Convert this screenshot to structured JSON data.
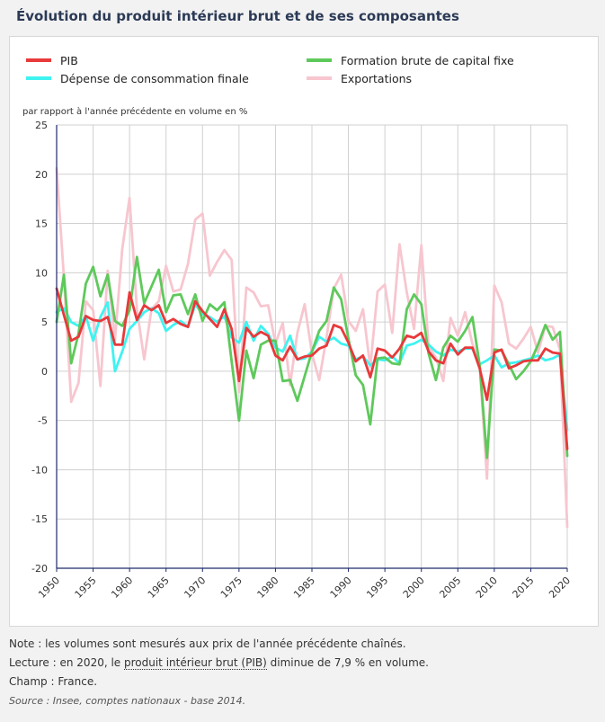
{
  "title": "Évolution du produit intérieur brut et de ses composantes",
  "chart_data": {
    "type": "line",
    "ylabel": "par rapport à l'année précédente en volume en %",
    "ylim": [
      -20,
      25
    ],
    "yticks": [
      -20,
      -15,
      -10,
      -5,
      0,
      5,
      10,
      15,
      20,
      25
    ],
    "xlim": [
      1950,
      2020
    ],
    "xticks": [
      1950,
      1955,
      1960,
      1965,
      1970,
      1975,
      1980,
      1985,
      1990,
      1995,
      2000,
      2005,
      2010,
      2015,
      2020
    ],
    "x_start": 1950,
    "series": [
      {
        "name": "Exportations",
        "color": "#f7c6cf",
        "values": [
          20.6,
          9.5,
          -3.1,
          -1.2,
          7.1,
          6.2,
          -1.5,
          10.2,
          3.2,
          12.4,
          17.6,
          6.3,
          1.2,
          6.3,
          7.1,
          10.7,
          8.1,
          8.3,
          10.9,
          15.4,
          16.0,
          9.7,
          11.1,
          12.3,
          11.3,
          -2.1,
          8.5,
          8.0,
          6.6,
          6.7,
          2.8,
          4.9,
          -1.4,
          3.9,
          6.8,
          1.8,
          -0.9,
          3.4,
          8.4,
          9.8,
          5.1,
          4.1,
          6.3,
          0.4,
          8.1,
          8.8,
          3.9,
          12.9,
          8.0,
          4.3,
          12.8,
          2.5,
          1.4,
          -1.0,
          5.4,
          3.6,
          6.0,
          2.8,
          0.6,
          -10.9,
          8.7,
          7.0,
          2.8,
          2.3,
          3.3,
          4.5,
          1.9,
          4.6,
          4.5,
          2.2,
          -15.8
        ]
      },
      {
        "name": "Dépense de consommation finale",
        "color": "#3ff3f0",
        "values": [
          6.0,
          6.4,
          5.0,
          4.6,
          5.6,
          3.1,
          5.5,
          7.0,
          0.0,
          2.0,
          4.3,
          5.1,
          6.0,
          6.4,
          5.9,
          4.1,
          4.7,
          5.1,
          4.5,
          6.8,
          5.8,
          5.5,
          5.0,
          5.6,
          3.4,
          2.9,
          5.0,
          3.1,
          4.6,
          3.8,
          2.4,
          2.0,
          3.6,
          1.2,
          1.3,
          2.0,
          3.5,
          3.0,
          3.4,
          2.8,
          2.6,
          1.2,
          1.5,
          0.6,
          1.2,
          1.1,
          1.5,
          0.8,
          2.6,
          2.8,
          3.2,
          2.7,
          2.0,
          1.6,
          2.2,
          2.0,
          2.3,
          2.3,
          0.7,
          1.1,
          1.6,
          0.4,
          0.8,
          0.9,
          1.1,
          1.3,
          1.6,
          1.1,
          1.3,
          1.7,
          -6.0
        ]
      },
      {
        "name": "Formation brute de capital fixe",
        "color": "#5ec95b",
        "values": [
          5.0,
          9.8,
          0.8,
          3.8,
          8.9,
          10.6,
          7.6,
          9.8,
          5.1,
          4.6,
          6.2,
          11.6,
          6.9,
          8.6,
          10.3,
          6.0,
          7.7,
          7.8,
          5.8,
          7.8,
          5.1,
          6.8,
          6.2,
          7.0,
          1.0,
          -5.0,
          2.1,
          -0.7,
          2.7,
          3.1,
          3.1,
          -1.0,
          -0.9,
          -3.0,
          -0.5,
          2.0,
          4.1,
          5.1,
          8.5,
          7.3,
          3.3,
          -0.4,
          -1.4,
          -5.4,
          1.3,
          1.4,
          0.8,
          0.7,
          6.3,
          7.8,
          6.8,
          1.8,
          -0.9,
          2.4,
          3.6,
          3.0,
          4.1,
          5.5,
          0.6,
          -8.8,
          2.2,
          2.1,
          0.7,
          -0.8,
          0.0,
          1.0,
          2.7,
          4.7,
          3.2,
          4.0,
          -8.6
        ]
      },
      {
        "name": "PIB",
        "color": "#e8393b",
        "values": [
          8.4,
          5.7,
          3.1,
          3.5,
          5.6,
          5.2,
          5.1,
          5.5,
          2.7,
          2.7,
          8.0,
          5.2,
          6.7,
          6.2,
          6.7,
          4.9,
          5.3,
          4.8,
          4.5,
          7.1,
          6.1,
          5.3,
          4.5,
          6.3,
          4.3,
          -1.0,
          4.4,
          3.5,
          4.0,
          3.6,
          1.6,
          1.1,
          2.5,
          1.2,
          1.5,
          1.6,
          2.3,
          2.6,
          4.7,
          4.4,
          2.9,
          1.0,
          1.6,
          -0.6,
          2.3,
          2.1,
          1.4,
          2.3,
          3.6,
          3.4,
          3.9,
          2.0,
          1.1,
          0.8,
          2.8,
          1.7,
          2.4,
          2.4,
          0.3,
          -2.9,
          1.9,
          2.2,
          0.3,
          0.6,
          1.0,
          1.1,
          1.1,
          2.3,
          1.9,
          1.8,
          -7.9
        ]
      }
    ],
    "legend": [
      {
        "label": "PIB",
        "color": "#e8393b"
      },
      {
        "label": "Dépense de consommation finale",
        "color": "#3ff3f0"
      },
      {
        "label": "Formation brute de capital fixe",
        "color": "#5ec95b"
      },
      {
        "label": "Exportations",
        "color": "#f7c6cf"
      }
    ]
  },
  "notes": {
    "note": "Note : les volumes sont mesurés aux prix de l'année précédente chaînés.",
    "lecture_prefix": "Lecture : en 2020, le ",
    "lecture_link": "produit intérieur brut (PIB)",
    "lecture_suffix": " diminue de 7,9 % en volume.",
    "champ": "Champ : France.",
    "source": "Source : Insee, comptes nationaux - base 2014."
  }
}
